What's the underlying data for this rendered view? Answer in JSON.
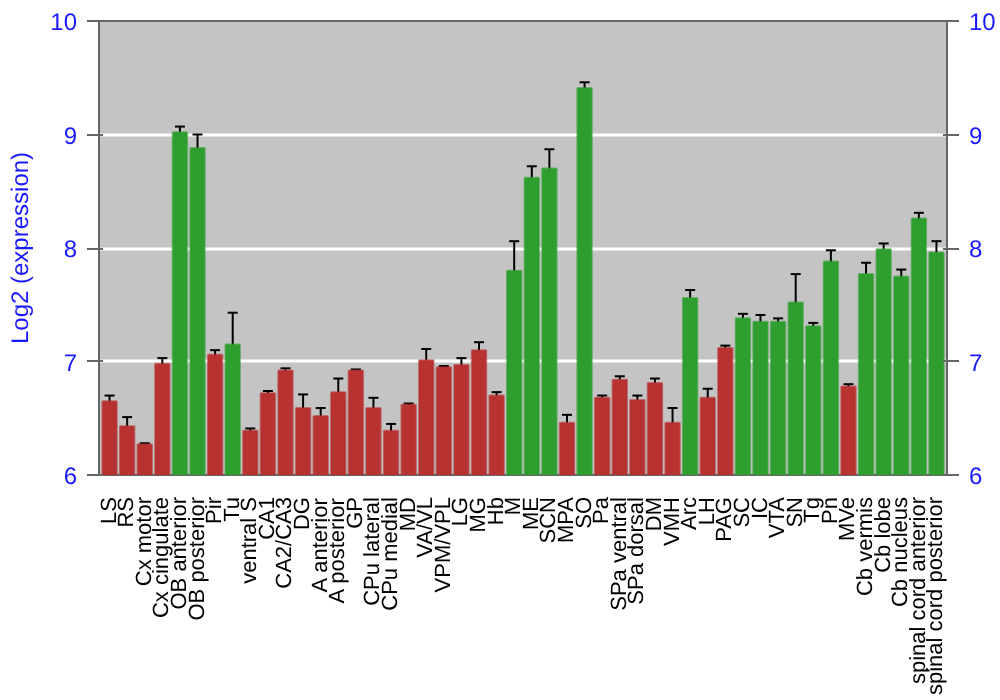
{
  "chart_data": {
    "type": "bar",
    "ylabel": "Log2 (expression)",
    "categories": [
      "LS",
      "RS",
      "Cx motor",
      "Cx cingulate",
      "OB anterior",
      "OB posterior",
      "Pir",
      "Tu",
      "ventral S",
      "CA1",
      "CA2/CA3",
      "DG",
      "A anterior",
      "A posterior",
      "GP",
      "CPu lateral",
      "CPu medial",
      "MD",
      "VA/VL",
      "VPM/VPL",
      "LG",
      "MG",
      "Hb",
      "M",
      "ME",
      "SCN",
      "MPA",
      "SO",
      "Pa",
      "SPa ventral",
      "SPa dorsal",
      "DM",
      "VMH",
      "Arc",
      "LH",
      "PAG",
      "SC",
      "IC",
      "VTA",
      "SN",
      "Tg",
      "Pn",
      "MVe",
      "Cb vermis",
      "Cb lobe",
      "Cb nucleus",
      "spinal cord anterior",
      "spinal cord posterior"
    ],
    "values": [
      6.65,
      6.43,
      6.27,
      6.98,
      9.02,
      8.88,
      7.06,
      7.15,
      6.39,
      6.72,
      6.92,
      6.59,
      6.52,
      6.73,
      6.92,
      6.59,
      6.39,
      6.62,
      7.01,
      6.95,
      6.97,
      7.1,
      6.7,
      7.8,
      8.62,
      8.7,
      6.46,
      9.41,
      6.68,
      6.84,
      6.66,
      6.81,
      6.46,
      7.56,
      6.68,
      7.12,
      7.38,
      7.35,
      7.35,
      7.52,
      7.31,
      7.88,
      6.78,
      7.77,
      7.99,
      7.75,
      8.26,
      7.96
    ],
    "errors": [
      0.05,
      0.08,
      0.01,
      0.05,
      0.05,
      0.12,
      0.04,
      0.28,
      0.02,
      0.02,
      0.02,
      0.12,
      0.07,
      0.12,
      0.01,
      0.09,
      0.06,
      0.01,
      0.1,
      0.01,
      0.06,
      0.07,
      0.03,
      0.26,
      0.1,
      0.17,
      0.07,
      0.05,
      0.02,
      0.03,
      0.04,
      0.04,
      0.13,
      0.07,
      0.08,
      0.02,
      0.04,
      0.06,
      0.03,
      0.25,
      0.03,
      0.1,
      0.02,
      0.1,
      0.05,
      0.06,
      0.05,
      0.1
    ],
    "colors": [
      "#b83232",
      "#b83232",
      "#b83232",
      "#b83232",
      "#2e9e2e",
      "#2e9e2e",
      "#b83232",
      "#2e9e2e",
      "#b83232",
      "#b83232",
      "#b83232",
      "#b83232",
      "#b83232",
      "#b83232",
      "#b83232",
      "#b83232",
      "#b83232",
      "#b83232",
      "#b83232",
      "#b83232",
      "#b83232",
      "#b83232",
      "#b83232",
      "#2e9e2e",
      "#2e9e2e",
      "#2e9e2e",
      "#b83232",
      "#2e9e2e",
      "#b83232",
      "#b83232",
      "#b83232",
      "#b83232",
      "#b83232",
      "#2e9e2e",
      "#b83232",
      "#b83232",
      "#2e9e2e",
      "#2e9e2e",
      "#2e9e2e",
      "#2e9e2e",
      "#2e9e2e",
      "#2e9e2e",
      "#b83232",
      "#2e9e2e",
      "#2e9e2e",
      "#2e9e2e",
      "#2e9e2e",
      "#2e9e2e"
    ],
    "ylim": [
      6,
      10
    ],
    "yticks": [
      6,
      7,
      8,
      9,
      10
    ],
    "y2lim": [
      6,
      10
    ],
    "y2ticks": [
      6,
      7,
      8,
      9,
      10
    ],
    "grid": "y"
  }
}
